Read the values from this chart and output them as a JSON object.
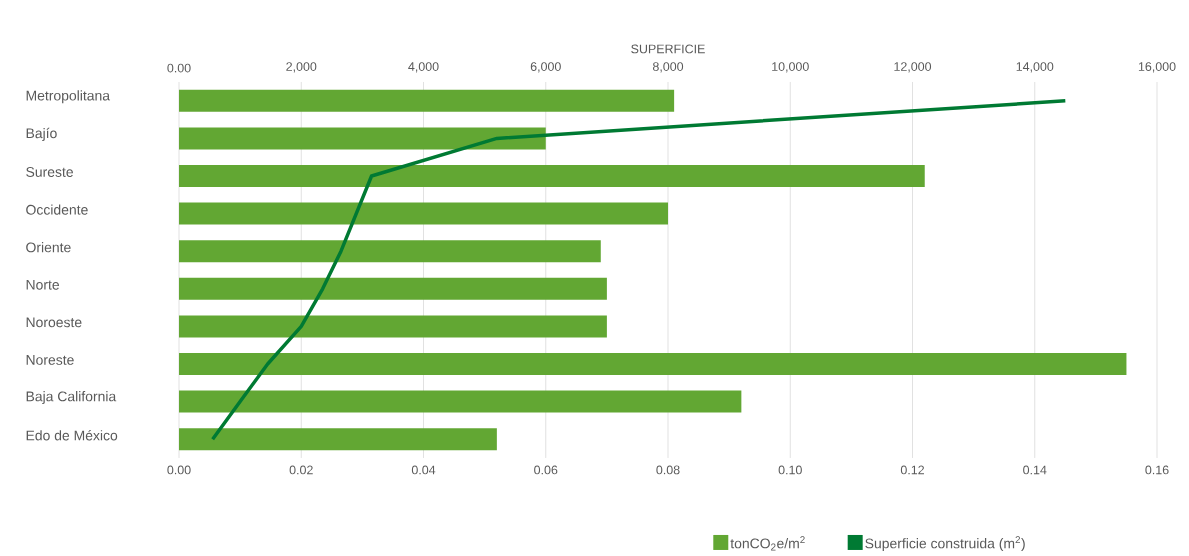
{
  "chart_data": {
    "type": "bar",
    "orientation": "horizontal",
    "categories": [
      "Metropolitana",
      "Bajío",
      "Sureste",
      "Occidente",
      "Oriente",
      "Norte",
      "Noroeste",
      "Noreste",
      "Baja California",
      "Edo de México"
    ],
    "series": [
      {
        "name": "tonCO$_{2}$e/m$^{2}$",
        "color": "#62a733",
        "values": [
          0.081,
          0.06,
          0.122,
          0.08,
          0.069,
          0.07,
          0.07,
          0.155,
          0.092,
          0.052
        ]
      },
      {
        "name": "Superficie construida (m$^{2}$)",
        "type": "line",
        "axis": "x2",
        "color": "#007a33",
        "values": [
          14500,
          5200,
          3150,
          2900,
          2650,
          2350,
          2000,
          1450,
          1000,
          550
        ]
      }
    ],
    "xlim": [
      0,
      0.16
    ],
    "xticks": [
      {
        "value": 0,
        "label": "0.00"
      },
      {
        "value": 0.02,
        "label": "0.02"
      },
      {
        "value": 0.04,
        "label": "0.04"
      },
      {
        "value": 0.06,
        "label": "0.06"
      },
      {
        "value": 0.08,
        "label": "0.08"
      },
      {
        "value": 0.1,
        "label": "0.10"
      },
      {
        "value": 0.12,
        "label": "0.12"
      },
      {
        "value": 0.14,
        "label": "0.14"
      },
      {
        "value": 0.16,
        "label": "0.16"
      }
    ],
    "x2lim": [
      0,
      16000
    ],
    "x2ticks": [
      {
        "value": 0,
        "label": "0.00"
      },
      {
        "value": 2000,
        "label": "2,000"
      },
      {
        "value": 4000,
        "label": "4,000"
      },
      {
        "value": 6000,
        "label": "6,000"
      },
      {
        "value": 8000,
        "label": "8,000"
      },
      {
        "value": 10000,
        "label": "10,000"
      },
      {
        "value": 12000,
        "label": "12,000"
      },
      {
        "value": 14000,
        "label": "14,000"
      },
      {
        "value": 16000,
        "label": "16,000"
      }
    ],
    "x2label": "SUPERFICIE",
    "grid": "x",
    "legend": "bottom"
  }
}
